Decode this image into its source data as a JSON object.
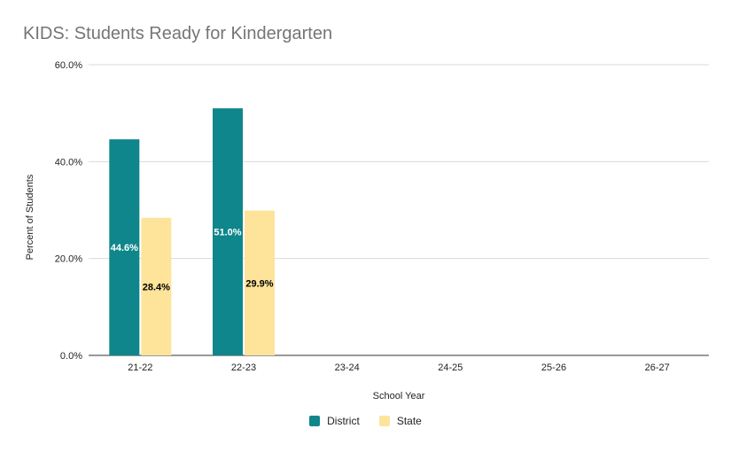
{
  "chart_data": {
    "type": "bar",
    "title": "KIDS: Students Ready for Kindergarten",
    "xlabel": "School Year",
    "ylabel": "Percent of Students",
    "categories": [
      "21-22",
      "22-23",
      "23-24",
      "24-25",
      "25-26",
      "26-27"
    ],
    "series": [
      {
        "name": "District",
        "color": "#0e868b",
        "values": [
          44.6,
          51.0,
          null,
          null,
          null,
          null
        ],
        "value_labels": [
          "44.6%",
          "51.0%",
          "",
          "",
          "",
          ""
        ]
      },
      {
        "name": "State",
        "color": "#fde49a",
        "values": [
          28.4,
          29.9,
          null,
          null,
          null,
          null
        ],
        "value_labels": [
          "28.4%",
          "29.9%",
          "",
          "",
          "",
          ""
        ]
      }
    ],
    "ylim": [
      0,
      60
    ],
    "yticks": [
      0,
      20,
      40,
      60
    ],
    "ytick_labels": [
      "0.0%",
      "20.0%",
      "40.0%",
      "60.0%"
    ],
    "grid": true,
    "legend_position": "bottom"
  }
}
